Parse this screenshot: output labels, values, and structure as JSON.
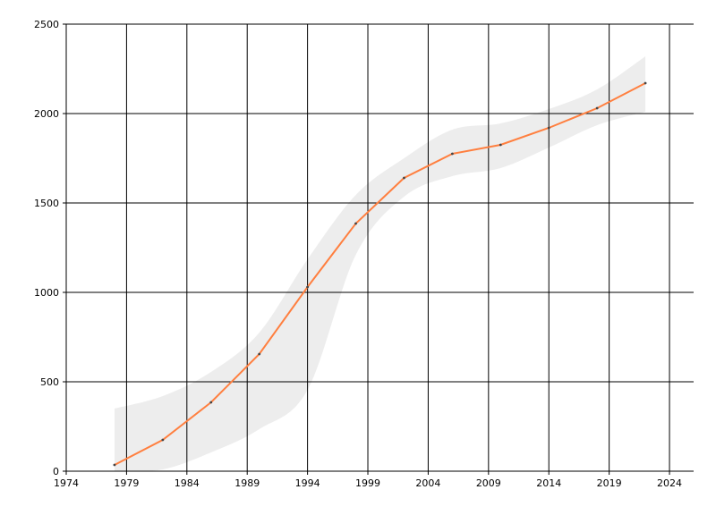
{
  "chart_data": {
    "type": "line",
    "title": "",
    "xlabel": "",
    "ylabel": "",
    "xlim": [
      1974,
      2026
    ],
    "ylim": [
      0,
      2500
    ],
    "x_ticks": [
      "1974",
      "1979",
      "1984",
      "1989",
      "1994",
      "1999",
      "2004",
      "2009",
      "2014",
      "2019",
      "2024"
    ],
    "y_ticks": [
      "0",
      "500",
      "1000",
      "1500",
      "2000",
      "2500"
    ],
    "grid": true,
    "x": [
      1978,
      1982,
      1986,
      1990,
      1994,
      1998,
      2002,
      2006,
      2010,
      2014,
      2018,
      2022
    ],
    "series": [
      {
        "values": [
          35,
          175,
          385,
          655,
          1030,
          1385,
          1640,
          1775,
          1825,
          1920,
          2030,
          2170
        ],
        "color": "#ff7f3f",
        "band_upper": [
          350,
          420,
          555,
          775,
          1185,
          1545,
          1750,
          1910,
          1945,
          2025,
          2135,
          2320
        ],
        "band_lower": [
          0,
          10,
          105,
          235,
          455,
          1210,
          1535,
          1650,
          1695,
          1810,
          1935,
          2010
        ],
        "band_color": "#ededed"
      }
    ]
  }
}
